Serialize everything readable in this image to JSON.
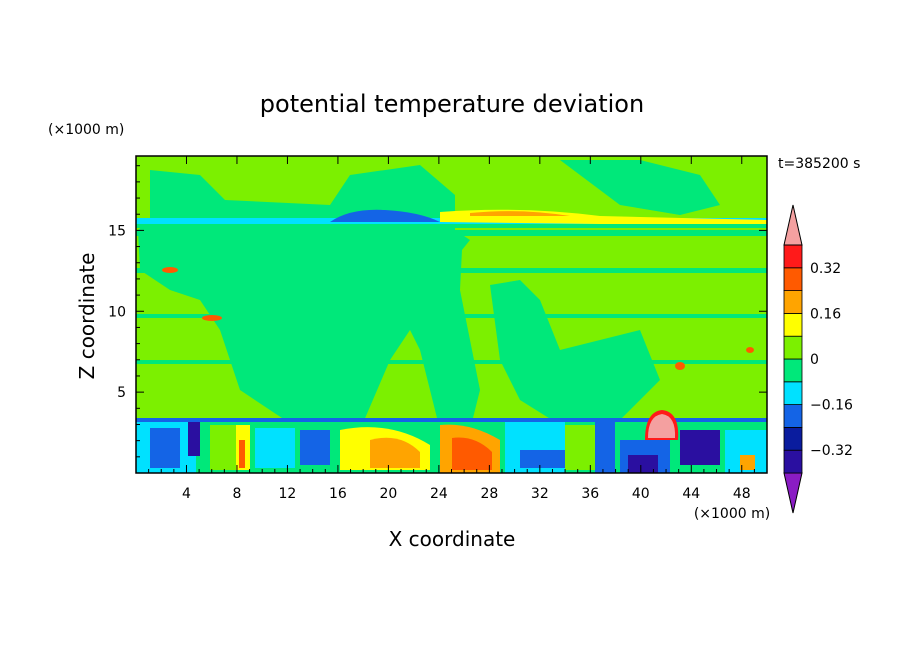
{
  "chart_data": {
    "type": "heatmap",
    "title": "potential temperature deviation",
    "xlabel": "X coordinate",
    "ylabel": "Z coordinate",
    "x_unit": "(×1000 m)",
    "y_unit": "(×1000 m)",
    "time_label": "t=385200 s",
    "xlim": [
      0,
      50
    ],
    "ylim": [
      0,
      19.6
    ],
    "x_ticks": [
      4,
      8,
      12,
      16,
      20,
      24,
      28,
      32,
      36,
      40,
      44,
      48
    ],
    "y_ticks": [
      5,
      10,
      15
    ],
    "colorbar": {
      "levels": [
        -0.4,
        -0.32,
        -0.24,
        -0.16,
        -0.08,
        0,
        0.08,
        0.16,
        0.24,
        0.32,
        0.4
      ],
      "labels": [
        "0.32",
        "0.16",
        "0",
        "−0.16",
        "−0.32"
      ],
      "label_values": [
        0.32,
        0.16,
        0,
        -0.16,
        -0.32
      ],
      "colors": [
        "#8a1cc4",
        "#2a0fa0",
        "#0a1c9e",
        "#1464e6",
        "#00e1ff",
        "#00e87a",
        "#7cf000",
        "#ffff00",
        "#ffa400",
        "#ff5a00",
        "#ff1a1a",
        "#f4a0a0"
      ]
    },
    "features": [
      {
        "name": "background",
        "value": 0.02
      },
      {
        "name": "inversion-band",
        "z": 15.8,
        "value": -0.1
      },
      {
        "name": "cold-lens",
        "x_range": [
          16,
          24
        ],
        "z": 16,
        "value": -0.2
      },
      {
        "name": "warm-streak",
        "x_range": [
          26,
          34
        ],
        "z": 16.1,
        "value": 0.2
      },
      {
        "name": "boundary-layer",
        "z_range": [
          0,
          3.3
        ],
        "value_range": [
          -0.4,
          0.4
        ]
      },
      {
        "name": "warm-core",
        "x": 26,
        "z": 1.2,
        "value": 0.3
      },
      {
        "name": "warm-bubble",
        "x": 41.5,
        "z": 3,
        "value": 0.4
      }
    ]
  }
}
